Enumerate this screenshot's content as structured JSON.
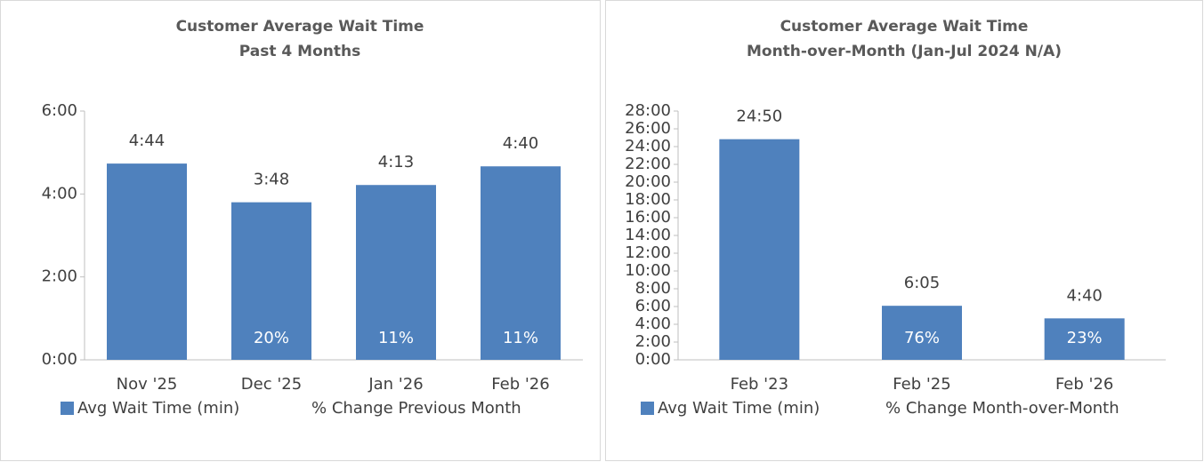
{
  "chart_data": [
    {
      "type": "bar",
      "title": "Customer Average Wait Time",
      "subtitle": "Past 4 Months",
      "categories": [
        "Nov '25",
        "Dec '25",
        "Jan '26",
        "Feb '26"
      ],
      "series": [
        {
          "name": "Avg Wait Time (min)",
          "color": "#4f81bd",
          "values": [
            284,
            228,
            253,
            280
          ],
          "value_labels": [
            "4:44",
            "3:48",
            "4:13",
            "4:40"
          ]
        },
        {
          "name": "% Change Previous Month",
          "values": [
            null,
            20,
            11,
            11
          ],
          "value_labels": [
            null,
            "20%",
            "11%",
            "11%"
          ]
        }
      ],
      "ylim": [
        0,
        360
      ],
      "yticks": [
        {
          "value": 0,
          "label": "0:00"
        },
        {
          "value": 120,
          "label": "2:00"
        },
        {
          "value": 240,
          "label": "4:00"
        },
        {
          "value": 360,
          "label": "6:00"
        }
      ]
    },
    {
      "type": "bar",
      "title": "Customer Average Wait Time",
      "subtitle": "Month-over-Month (Jan-Jul 2024 N/A)",
      "categories": [
        "Feb '23",
        "Feb '25",
        "Feb '26"
      ],
      "series": [
        {
          "name": "Avg Wait Time (min)",
          "color": "#4f81bd",
          "values": [
            1490,
            365,
            280
          ],
          "value_labels": [
            "24:50",
            "6:05",
            "4:40"
          ]
        },
        {
          "name": "% Change Month-over-Month",
          "values": [
            null,
            76,
            23
          ],
          "value_labels": [
            null,
            "76%",
            "23%"
          ]
        }
      ],
      "ylim": [
        0,
        1680
      ],
      "yticks": [
        {
          "value": 0,
          "label": "0:00"
        },
        {
          "value": 120,
          "label": "2:00"
        },
        {
          "value": 240,
          "label": "4:00"
        },
        {
          "value": 360,
          "label": "6:00"
        },
        {
          "value": 480,
          "label": "8:00"
        },
        {
          "value": 600,
          "label": "10:00"
        },
        {
          "value": 720,
          "label": "12:00"
        },
        {
          "value": 840,
          "label": "14:00"
        },
        {
          "value": 960,
          "label": "16:00"
        },
        {
          "value": 1080,
          "label": "18:00"
        },
        {
          "value": 1200,
          "label": "20:00"
        },
        {
          "value": 1320,
          "label": "22:00"
        },
        {
          "value": 1440,
          "label": "24:00"
        },
        {
          "value": 1560,
          "label": "26:00"
        },
        {
          "value": 1680,
          "label": "28:00"
        }
      ]
    }
  ]
}
